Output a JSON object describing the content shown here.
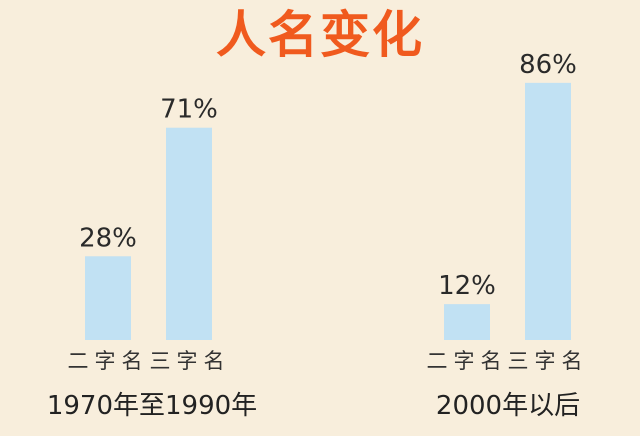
{
  "title": "人名变化",
  "chart_data": [
    {
      "type": "bar",
      "group_label": "1970年至1990年",
      "categories": [
        "二字名",
        "三字名"
      ],
      "values": [
        28,
        71
      ],
      "value_labels": [
        "28%",
        "71%"
      ],
      "ylim": [
        0,
        100
      ]
    },
    {
      "type": "bar",
      "group_label": "2000年以后",
      "categories": [
        "二字名",
        "三字名"
      ],
      "values": [
        12,
        86
      ],
      "value_labels": [
        "12%",
        "86%"
      ],
      "ylim": [
        0,
        100
      ]
    }
  ],
  "colors": {
    "title": "#f05a1e",
    "bar": "#c1e1f3",
    "background": "#f8eedc"
  }
}
